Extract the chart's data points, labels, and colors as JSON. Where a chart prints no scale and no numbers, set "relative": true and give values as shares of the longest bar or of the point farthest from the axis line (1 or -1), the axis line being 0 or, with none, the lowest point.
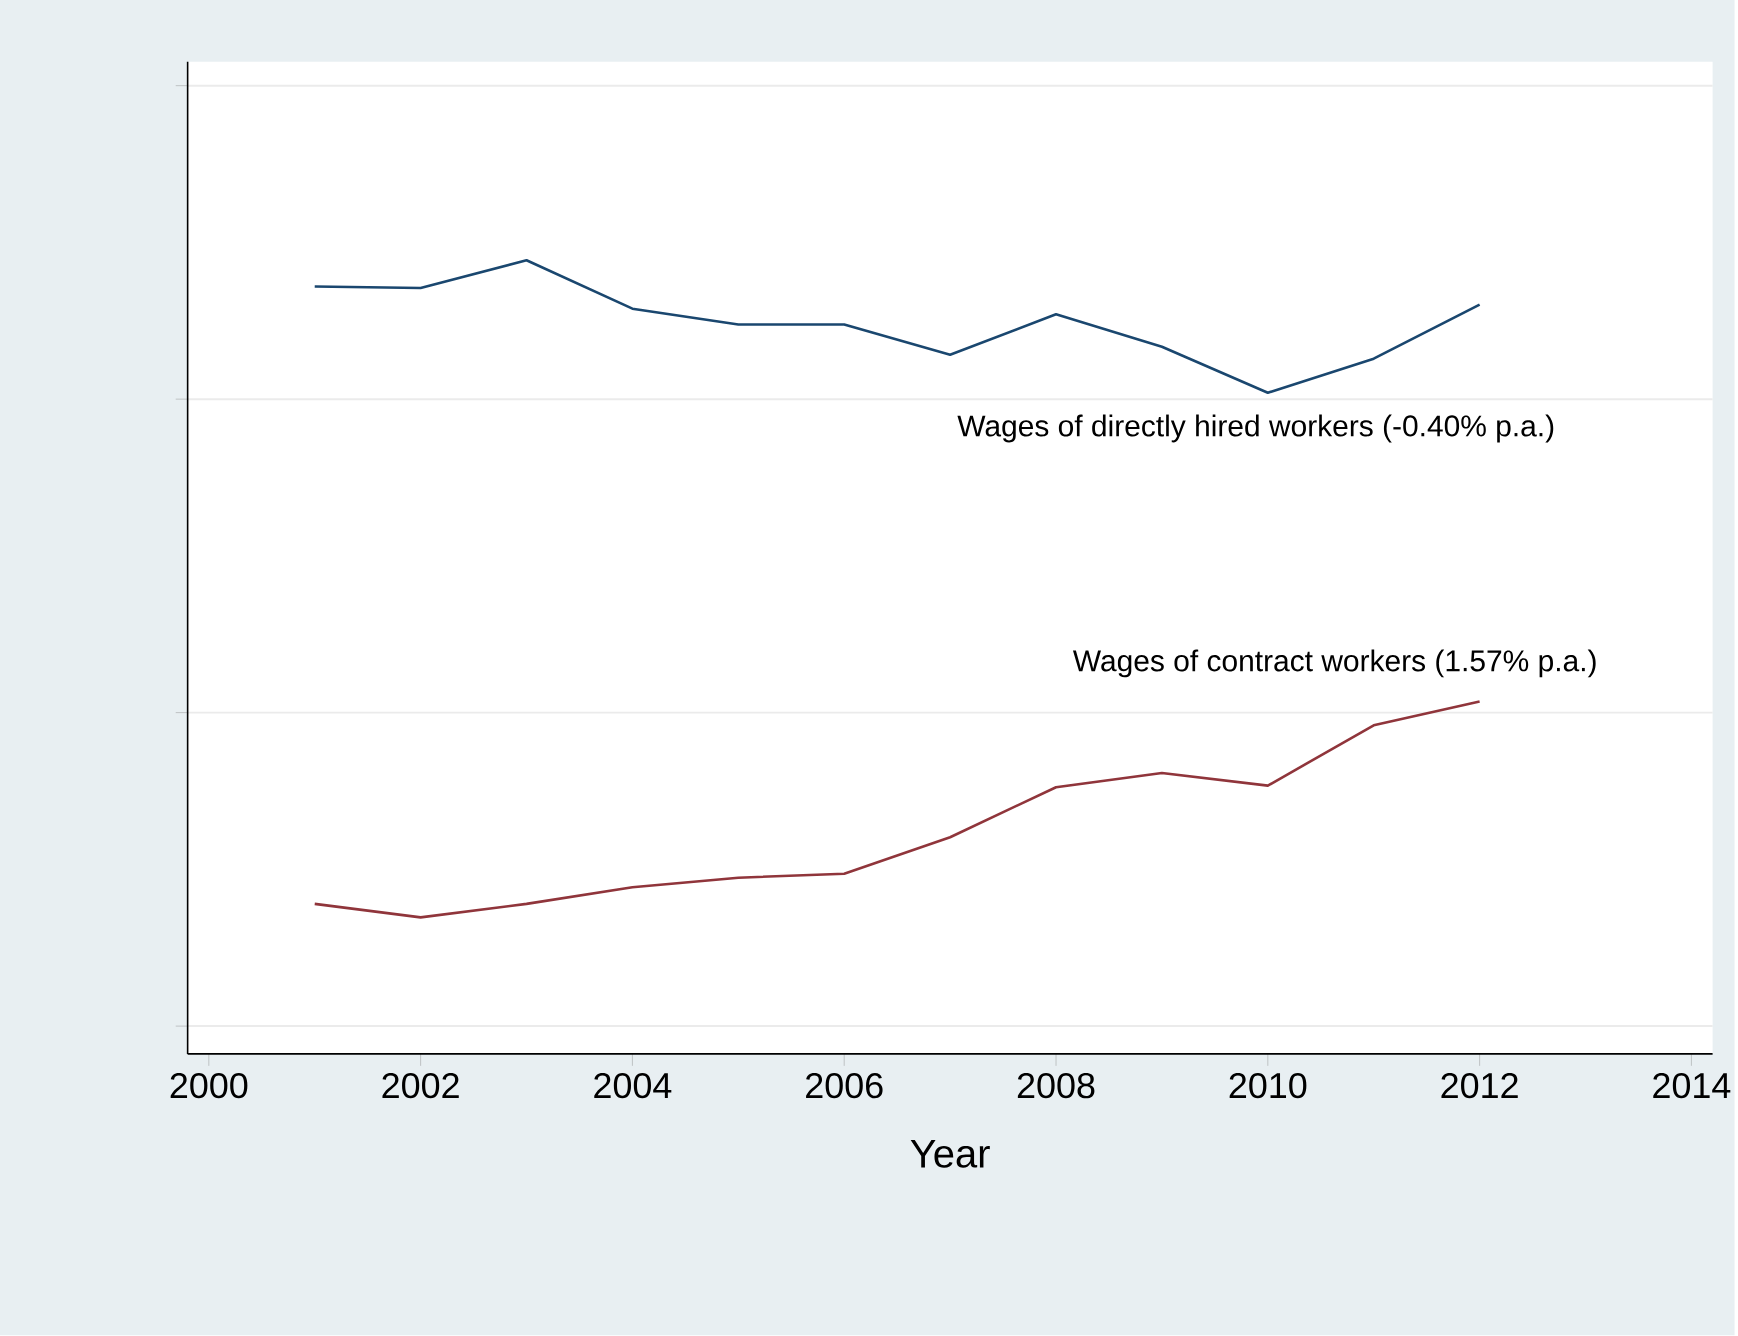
{
  "chart_data": {
    "type": "line",
    "relative": true,
    "xlabel": "Year",
    "x": [
      2001,
      2002,
      2003,
      2004,
      2005,
      2006,
      2007,
      2008,
      2009,
      2010,
      2011,
      2012
    ],
    "series": [
      {
        "color": "#1a476f",
        "values": [
          0.967,
          0.965,
          1.0,
          0.939,
          0.919,
          0.919,
          0.881,
          0.932,
          0.891,
          0.833,
          0.876,
          0.944
        ]
      },
      {
        "color": "#90353b",
        "values": [
          0.189,
          0.172,
          0.189,
          0.21,
          0.222,
          0.227,
          0.273,
          0.336,
          0.354,
          0.338,
          0.414,
          0.444
        ]
      }
    ],
    "xlim": [
      1999.8,
      2014.2
    ],
    "xticks": [
      2000,
      2002,
      2004,
      2006,
      2008,
      2010,
      2012,
      2014
    ],
    "grid": "y",
    "marker": "none",
    "line_style": "solid",
    "annotations": [
      "Wages of directly hired workers (-0.40% p.a.)",
      "Wages of contract workers (1.57% p.a.)"
    ]
  }
}
